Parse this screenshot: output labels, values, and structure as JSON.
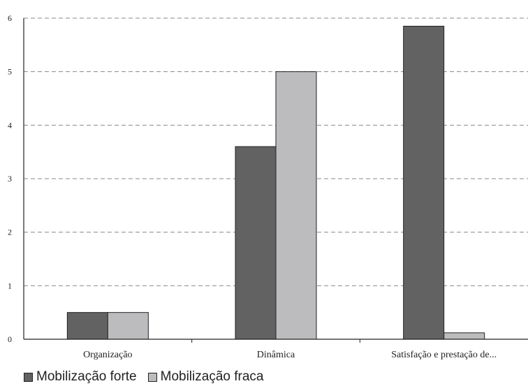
{
  "chart_data": {
    "type": "bar",
    "categories": [
      "Organização",
      "Dinâmica",
      "Satisfação e prestação de..."
    ],
    "series": [
      {
        "name": "Mobilização forte",
        "values": [
          0.5,
          3.6,
          5.85
        ],
        "color": "#626262"
      },
      {
        "name": "Mobilização fraca",
        "values": [
          0.5,
          5.0,
          0.12
        ],
        "color": "#bcbcbf"
      }
    ],
    "yticks": [
      "0",
      "1",
      "2",
      "3",
      "4",
      "5",
      "6"
    ],
    "ylim": [
      0,
      6
    ],
    "grid": true,
    "legend_position": "bottom-left",
    "title": "",
    "xlabel": "",
    "ylabel": ""
  }
}
